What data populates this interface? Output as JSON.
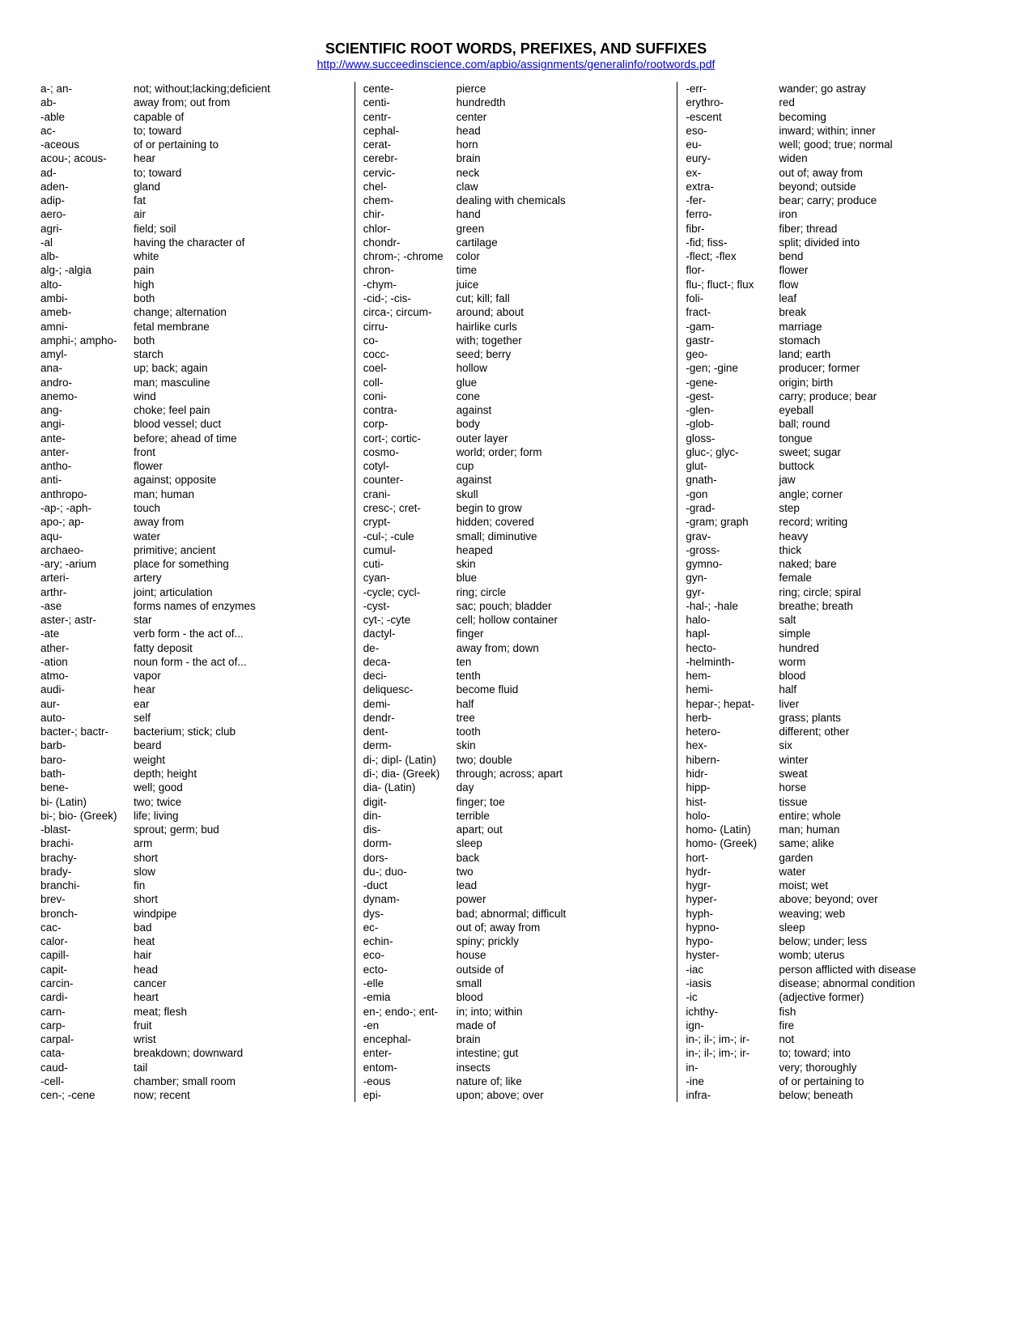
{
  "header": {
    "title": "SCIENTIFIC ROOT WORDS, PREFIXES, AND SUFFIXES",
    "url": "http://www.succeedinscience.com/apbio/assignments/generalinfo/rootwords.pdf"
  },
  "columns": [
    {
      "entries": [
        {
          "term": "a-; an-",
          "def": "not; without;lacking;deficient"
        },
        {
          "term": "ab-",
          "def": "away from; out from"
        },
        {
          "term": "-able",
          "def": "capable of"
        },
        {
          "term": "ac-",
          "def": "to; toward"
        },
        {
          "term": "-aceous",
          "def": "of or pertaining to"
        },
        {
          "term": "acou-; acous-",
          "def": "hear"
        },
        {
          "term": "ad-",
          "def": "to; toward"
        },
        {
          "term": "aden-",
          "def": "gland"
        },
        {
          "term": "adip-",
          "def": "fat"
        },
        {
          "term": "aero-",
          "def": "air"
        },
        {
          "term": "agri-",
          "def": "field; soil"
        },
        {
          "term": "-al",
          "def": "having the character of"
        },
        {
          "term": "alb-",
          "def": "white"
        },
        {
          "term": "alg-; -algia",
          "def": "pain"
        },
        {
          "term": "alto-",
          "def": "high"
        },
        {
          "term": "ambi-",
          "def": "both"
        },
        {
          "term": "ameb-",
          "def": "change; alternation"
        },
        {
          "term": "amni-",
          "def": "fetal membrane"
        },
        {
          "term": "amphi-; ampho-",
          "def": "both"
        },
        {
          "term": "amyl-",
          "def": "starch"
        },
        {
          "term": "ana-",
          "def": "up; back; again"
        },
        {
          "term": "andro-",
          "def": "man; masculine"
        },
        {
          "term": "anemo-",
          "def": "wind"
        },
        {
          "term": "ang-",
          "def": "choke; feel pain"
        },
        {
          "term": "angi-",
          "def": "blood vessel; duct"
        },
        {
          "term": "ante-",
          "def": "before; ahead of time"
        },
        {
          "term": "anter-",
          "def": "front"
        },
        {
          "term": "antho-",
          "def": "flower"
        },
        {
          "term": "anti-",
          "def": "against; opposite"
        },
        {
          "term": "anthropo-",
          "def": "man; human"
        },
        {
          "term": "-ap-; -aph-",
          "def": "                       touch"
        },
        {
          "term": "apo-; ap-",
          "def": "away from"
        },
        {
          "term": "aqu-",
          "def": "water"
        },
        {
          "term": "archaeo-",
          "def": "primitive; ancient"
        },
        {
          "term": "-ary; -arium",
          "def": "place for something"
        },
        {
          "term": "arteri-",
          "def": "artery"
        },
        {
          "term": "arthr-",
          "def": "joint; articulation"
        },
        {
          "term": "-ase",
          "def": "forms names of enzymes"
        },
        {
          "term": "aster-; astr-",
          "def": "star"
        },
        {
          "term": "-ate",
          "def": "verb form - the act of..."
        },
        {
          "term": "ather-",
          "def": "fatty deposit"
        },
        {
          "term": "-ation",
          "def": "noun form - the act of..."
        },
        {
          "term": "atmo-",
          "def": "vapor"
        },
        {
          "term": "audi-",
          "def": "hear"
        },
        {
          "term": "aur-",
          "def": "ear"
        },
        {
          "term": "auto-",
          "def": "self"
        },
        {
          "term": "bacter-; bactr-",
          "def": "bacterium; stick; club"
        },
        {
          "term": "barb-",
          "def": "beard"
        },
        {
          "term": "baro-",
          "def": "weight"
        },
        {
          "term": "bath-",
          "def": "depth; height"
        },
        {
          "term": "bene-",
          "def": "well; good"
        },
        {
          "term": "bi- (Latin)",
          "def": "two; twice"
        },
        {
          "term": "bi-; bio- (Greek)",
          "def": "life; living"
        },
        {
          "term": "-blast-",
          "def": "sprout; germ; bud"
        },
        {
          "term": "brachi-",
          "def": "arm"
        },
        {
          "term": "brachy-",
          "def": "short"
        },
        {
          "term": "brady-",
          "def": "slow"
        },
        {
          "term": "branchi-",
          "def": "fin"
        },
        {
          "term": "brev-",
          "def": "short"
        },
        {
          "term": "bronch-",
          "def": "windpipe"
        },
        {
          "term": "cac-",
          "def": "bad"
        },
        {
          "term": "calor-",
          "def": "heat"
        },
        {
          "term": "capill-",
          "def": "hair"
        },
        {
          "term": "capit-",
          "def": "head"
        },
        {
          "term": "carcin-",
          "def": "cancer"
        },
        {
          "term": "cardi-",
          "def": "heart"
        },
        {
          "term": "carn-",
          "def": "meat; flesh"
        },
        {
          "term": "carp-",
          "def": "fruit"
        },
        {
          "term": "carpal-",
          "def": "wrist"
        },
        {
          "term": "cata-",
          "def": "breakdown; downward"
        },
        {
          "term": "caud-",
          "def": "tail"
        },
        {
          "term": "-cell-",
          "def": "chamber; small room"
        },
        {
          "term": "cen-; -cene",
          "def": "now; recent"
        }
      ]
    },
    {
      "entries": [
        {
          "term": "cente-",
          "def": "pierce"
        },
        {
          "term": "centi-",
          "def": "hundredth"
        },
        {
          "term": "centr-",
          "def": "center"
        },
        {
          "term": "cephal-",
          "def": "head"
        },
        {
          "term": "cerat-",
          "def": "horn"
        },
        {
          "term": "cerebr-",
          "def": "brain"
        },
        {
          "term": "cervic-",
          "def": "neck"
        },
        {
          "term": "chel-",
          "def": "claw"
        },
        {
          "term": "chem-",
          "def": "dealing with chemicals"
        },
        {
          "term": "chir-",
          "def": "hand"
        },
        {
          "term": "chlor-",
          "def": "green"
        },
        {
          "term": "chondr-",
          "def": "cartilage"
        },
        {
          "term": "chrom-; -chrome",
          "def": "color"
        },
        {
          "term": "chron-",
          "def": "time"
        },
        {
          "term": "-chym-",
          "def": "juice"
        },
        {
          "term": "-cid-; -cis-",
          "def": "cut; kill; fall"
        },
        {
          "term": "circa-; circum-",
          "def": "around; about"
        },
        {
          "term": "cirru-",
          "def": "hairlike curls"
        },
        {
          "term": "co-",
          "def": "with; together"
        },
        {
          "term": "cocc-",
          "def": "seed; berry"
        },
        {
          "term": "coel-",
          "def": "hollow"
        },
        {
          "term": "coll-",
          "def": "glue"
        },
        {
          "term": "coni-",
          "def": "cone"
        },
        {
          "term": "contra-",
          "def": "against"
        },
        {
          "term": "corp-",
          "def": "body"
        },
        {
          "term": "cort-; cortic-",
          "def": "outer layer"
        },
        {
          "term": "cosmo-",
          "def": "world; order; form"
        },
        {
          "term": "cotyl-",
          "def": "cup"
        },
        {
          "term": "counter-",
          "def": "against"
        },
        {
          "term": "crani-",
          "def": "skull"
        },
        {
          "term": "cresc-; cret-",
          "def": "begin to grow"
        },
        {
          "term": "crypt-",
          "def": "hidden; covered"
        },
        {
          "term": "-cul-; -cule",
          "def": "small; diminutive"
        },
        {
          "term": "cumul-",
          "def": "heaped"
        },
        {
          "term": "cuti-",
          "def": "skin"
        },
        {
          "term": "cyan-",
          "def": "blue"
        },
        {
          "term": "-cycle; cycl-",
          "def": "ring; circle"
        },
        {
          "term": "-cyst-",
          "def": "sac; pouch; bladder"
        },
        {
          "term": "cyt-; -cyte",
          "def": "cell; hollow container"
        },
        {
          "term": "dactyl-",
          "def": "finger"
        },
        {
          "term": "de-",
          "def": "away from; down"
        },
        {
          "term": "deca-",
          "def": "ten"
        },
        {
          "term": "deci-",
          "def": "tenth"
        },
        {
          "term": "deliquesc-",
          "def": "become fluid"
        },
        {
          "term": "demi-",
          "def": "half"
        },
        {
          "term": "dendr-",
          "def": "tree"
        },
        {
          "term": "dent-",
          "def": "tooth"
        },
        {
          "term": "derm-",
          "def": "skin"
        },
        {
          "term": "di-; dipl- (Latin)",
          "def": "two; double"
        },
        {
          "term": "di-; dia- (Greek)",
          "def": "through; across; apart"
        },
        {
          "term": "dia- (Latin)",
          "def": "day"
        },
        {
          "term": "digit-",
          "def": "finger; toe"
        },
        {
          "term": "din-",
          "def": "terrible"
        },
        {
          "term": "dis-",
          "def": "apart; out"
        },
        {
          "term": "dorm-",
          "def": "sleep"
        },
        {
          "term": "dors-",
          "def": "back"
        },
        {
          "term": "du-; duo-",
          "def": "two"
        },
        {
          "term": "-duct",
          "def": "lead"
        },
        {
          "term": "dynam-",
          "def": "power"
        },
        {
          "term": "dys-",
          "def": "bad; abnormal; difficult"
        },
        {
          "term": "ec-",
          "def": "out of; away from"
        },
        {
          "term": "echin-",
          "def": "spiny; prickly"
        },
        {
          "term": "eco-",
          "def": "house"
        },
        {
          "term": "ecto-",
          "def": "outside of"
        },
        {
          "term": "-elle",
          "def": "small"
        },
        {
          "term": "-emia",
          "def": "blood"
        },
        {
          "term": "en-; endo-; ent-",
          "def": "in; into; within"
        },
        {
          "term": "-en",
          "def": "made of"
        },
        {
          "term": "encephal-",
          "def": "brain"
        },
        {
          "term": "enter-",
          "def": "intestine; gut"
        },
        {
          "term": "entom-",
          "def": "insects"
        },
        {
          "term": "-eous",
          "def": "nature of; like"
        },
        {
          "term": "epi-",
          "def": "upon; above; over"
        }
      ]
    },
    {
      "entries": [
        {
          "term": "-err-",
          "def": "wander; go astray"
        },
        {
          "term": "erythro-",
          "def": "red"
        },
        {
          "term": "-escent",
          "def": "becoming"
        },
        {
          "term": "eso-",
          "def": "inward; within; inner"
        },
        {
          "term": "eu-",
          "def": "well; good; true; normal"
        },
        {
          "term": "eury-",
          "def": "widen"
        },
        {
          "term": "ex-",
          "def": "out of; away from"
        },
        {
          "term": "extra-",
          "def": "beyond; outside"
        },
        {
          "term": "-fer-",
          "def": "bear; carry; produce"
        },
        {
          "term": "ferro-",
          "def": "iron"
        },
        {
          "term": "fibr-",
          "def": "fiber; thread"
        },
        {
          "term": "-fid; fiss-",
          "def": "split; divided into"
        },
        {
          "term": "-flect; -flex",
          "def": "bend"
        },
        {
          "term": "flor-",
          "def": "flower"
        },
        {
          "term": "flu-; fluct-; flux",
          "def": "flow"
        },
        {
          "term": "foli-",
          "def": "leaf"
        },
        {
          "term": "fract-",
          "def": "break"
        },
        {
          "term": "-gam-",
          "def": "marriage"
        },
        {
          "term": "gastr-",
          "def": "stomach"
        },
        {
          "term": "geo-",
          "def": "land; earth"
        },
        {
          "term": "-gen; -gine",
          "def": "producer; former"
        },
        {
          "term": "-gene-",
          "def": "origin; birth"
        },
        {
          "term": "-gest-",
          "def": "carry; produce; bear"
        },
        {
          "term": "-glen-",
          "def": "eyeball"
        },
        {
          "term": "-glob-",
          "def": "ball; round"
        },
        {
          "term": "gloss-",
          "def": "tongue"
        },
        {
          "term": "gluc-; glyc-",
          "def": "sweet; sugar"
        },
        {
          "term": "glut-",
          "def": "buttock"
        },
        {
          "term": "gnath-",
          "def": "jaw"
        },
        {
          "term": "-gon",
          "def": "angle; corner"
        },
        {
          "term": "-grad-",
          "def": "step"
        },
        {
          "term": "-gram; graph",
          "def": "record; writing"
        },
        {
          "term": "grav-",
          "def": "heavy"
        },
        {
          "term": "-gross-",
          "def": "thick"
        },
        {
          "term": "gymno-",
          "def": "naked; bare"
        },
        {
          "term": "gyn-",
          "def": "female"
        },
        {
          "term": "gyr-",
          "def": "ring; circle; spiral"
        },
        {
          "term": "-hal-; -hale",
          "def": "breathe; breath"
        },
        {
          "term": "halo-",
          "def": "salt"
        },
        {
          "term": "hapl-",
          "def": "simple"
        },
        {
          "term": "hecto-",
          "def": "hundred"
        },
        {
          "term": "-helminth-",
          "def": "worm"
        },
        {
          "term": "hem-",
          "def": "blood"
        },
        {
          "term": "hemi-",
          "def": "half"
        },
        {
          "term": "hepar-; hepat-",
          "def": "liver"
        },
        {
          "term": "herb-",
          "def": "grass; plants"
        },
        {
          "term": "hetero-",
          "def": "different; other"
        },
        {
          "term": "hex-",
          "def": "six"
        },
        {
          "term": "hibern-",
          "def": "winter"
        },
        {
          "term": "hidr-",
          "def": "sweat"
        },
        {
          "term": "hipp-",
          "def": "horse"
        },
        {
          "term": "hist-",
          "def": "tissue"
        },
        {
          "term": "holo-",
          "def": "entire; whole"
        },
        {
          "term": "homo- (Latin)",
          "def": "man; human"
        },
        {
          "term": "homo- (Greek)",
          "def": "same; alike"
        },
        {
          "term": "hort-",
          "def": "garden"
        },
        {
          "term": "hydr-",
          "def": "water"
        },
        {
          "term": "hygr-",
          "def": "moist; wet"
        },
        {
          "term": "hyper-",
          "def": "above; beyond; over"
        },
        {
          "term": "hyph-",
          "def": "weaving; web"
        },
        {
          "term": "hypno-",
          "def": "sleep"
        },
        {
          "term": "hypo-",
          "def": "below; under; less"
        },
        {
          "term": "hyster-",
          "def": "womb; uterus"
        },
        {
          "term": "-iac",
          "def": "person afflicted with disease"
        },
        {
          "term": "-iasis",
          "def": "disease; abnormal condition"
        },
        {
          "term": "-ic",
          "def": "(adjective former)"
        },
        {
          "term": "ichthy-",
          "def": "fish"
        },
        {
          "term": "ign-",
          "def": "fire"
        },
        {
          "term": "in-; il-; im-; ir-",
          "def": "not"
        },
        {
          "term": "in-; il-; im-; ir-",
          "def": "to; toward; into"
        },
        {
          "term": "in-",
          "def": "very; thoroughly"
        },
        {
          "term": "-ine",
          "def": "of or pertaining to"
        },
        {
          "term": "infra-",
          "def": "below; beneath"
        }
      ]
    }
  ]
}
